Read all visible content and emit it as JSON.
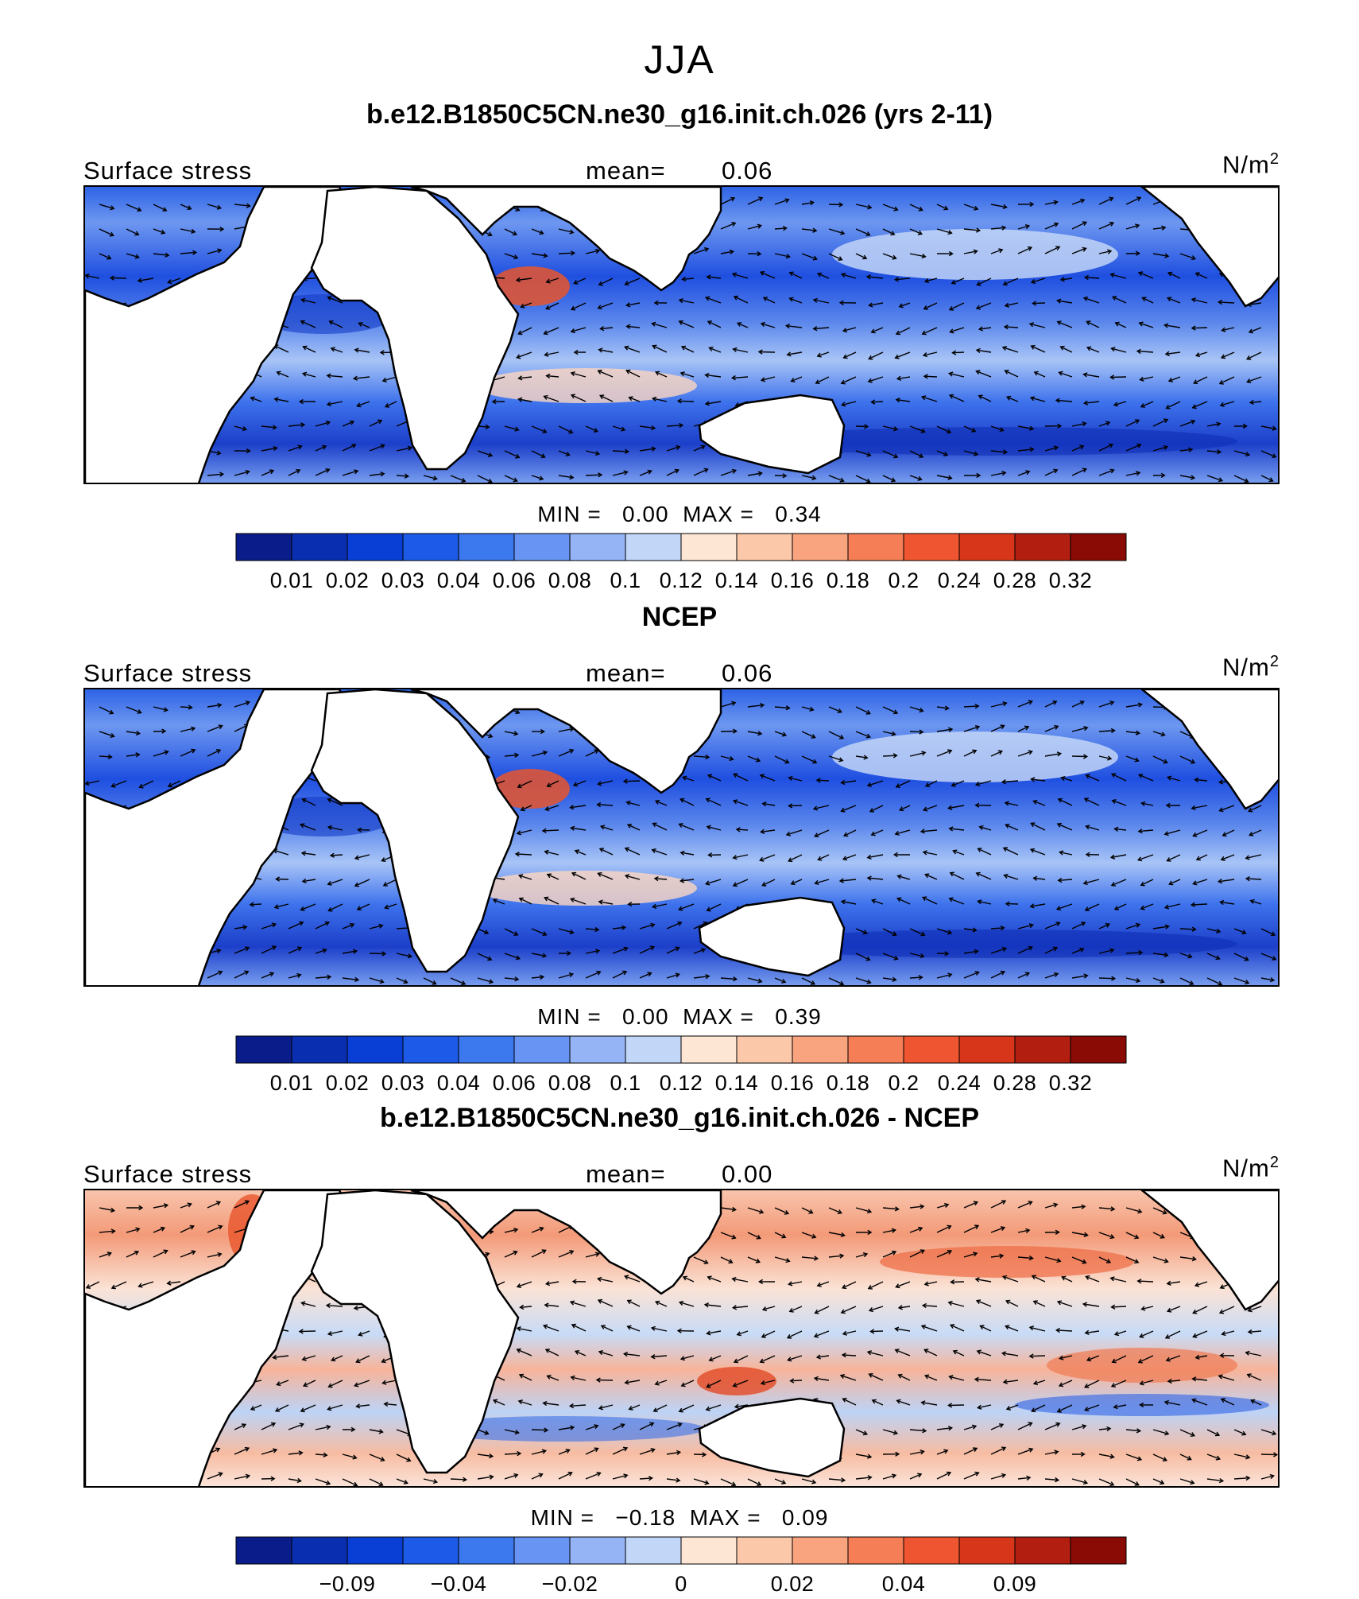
{
  "page": {
    "title": "JJA"
  },
  "chart_data": [
    {
      "type": "heatmap",
      "title": "b.e12.B1850C5CN.ne30_g16.init.ch.026 (yrs 2-11)",
      "left_label": "Surface stress",
      "mean_label": "mean=",
      "mean_value": "0.06",
      "units": "N/m",
      "units_sup": "2",
      "min_label": "MIN =",
      "min_value": "0.00",
      "max_label": "MAX =",
      "max_value": "0.34",
      "colorbar": {
        "colors": [
          "#0a1c8a",
          "#0a2eb0",
          "#0a3fd6",
          "#1d5ae8",
          "#3c78ee",
          "#6894f3",
          "#95b4f6",
          "#c2d6f8",
          "#fde6d4",
          "#fcc8aa",
          "#f9a47f",
          "#f57e56",
          "#ef5530",
          "#d8361a",
          "#b21f10",
          "#8a0a06"
        ],
        "tick_labels": [
          "0.01",
          "0.02",
          "0.03",
          "0.04",
          "0.06",
          "0.08",
          "0.1",
          "0.12",
          "0.14",
          "0.16",
          "0.18",
          "0.2",
          "0.24",
          "0.28",
          "0.32"
        ]
      }
    },
    {
      "type": "heatmap",
      "title": "NCEP",
      "left_label": "Surface stress",
      "mean_label": "mean=",
      "mean_value": "0.06",
      "units": "N/m",
      "units_sup": "2",
      "min_label": "MIN =",
      "min_value": "0.00",
      "max_label": "MAX =",
      "max_value": "0.39",
      "colorbar": {
        "colors": [
          "#0a1c8a",
          "#0a2eb0",
          "#0a3fd6",
          "#1d5ae8",
          "#3c78ee",
          "#6894f3",
          "#95b4f6",
          "#c2d6f8",
          "#fde6d4",
          "#fcc8aa",
          "#f9a47f",
          "#f57e56",
          "#ef5530",
          "#d8361a",
          "#b21f10",
          "#8a0a06"
        ],
        "tick_labels": [
          "0.01",
          "0.02",
          "0.03",
          "0.04",
          "0.06",
          "0.08",
          "0.1",
          "0.12",
          "0.14",
          "0.16",
          "0.18",
          "0.2",
          "0.24",
          "0.28",
          "0.32"
        ]
      }
    },
    {
      "type": "heatmap",
      "title": "b.e12.B1850C5CN.ne30_g16.init.ch.026 - NCEP",
      "left_label": "Surface stress",
      "mean_label": "mean=",
      "mean_value": "0.00",
      "units": "N/m",
      "units_sup": "2",
      "min_label": "MIN =",
      "min_value": "−0.18",
      "max_label": "MAX =",
      "max_value": "0.09",
      "colorbar": {
        "colors": [
          "#0a1c8a",
          "#0a2eb0",
          "#0a3fd6",
          "#1d5ae8",
          "#3c78ee",
          "#6894f3",
          "#95b4f6",
          "#c2d6f8",
          "#fde6d4",
          "#fcc8aa",
          "#f9a47f",
          "#f57e56",
          "#ef5530",
          "#d8361a",
          "#b21f10",
          "#8a0a06"
        ],
        "tick_labels": [
          "",
          "−0.09",
          "",
          "−0.04",
          "",
          "−0.02",
          "",
          "0",
          "",
          "0.02",
          "",
          "0.04",
          "",
          "0.09",
          ""
        ]
      }
    }
  ]
}
